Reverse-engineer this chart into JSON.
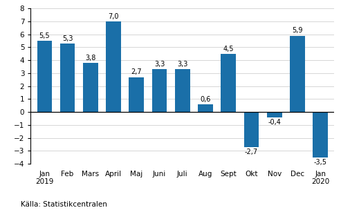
{
  "categories": [
    "Jan\n2019",
    "Feb",
    "Mars",
    "April",
    "Maj",
    "Juni",
    "Juli",
    "Aug",
    "Sept",
    "Okt",
    "Nov",
    "Dec",
    "Jan\n2020"
  ],
  "values": [
    5.5,
    5.3,
    3.8,
    7.0,
    2.7,
    3.3,
    3.3,
    0.6,
    4.5,
    -2.7,
    -0.4,
    5.9,
    -3.5
  ],
  "bar_color": "#1a6fa8",
  "ylim": [
    -4,
    8
  ],
  "yticks": [
    -4,
    -3,
    -2,
    -1,
    0,
    1,
    2,
    3,
    4,
    5,
    6,
    7,
    8
  ],
  "source_text": "Källa: Statistikcentralen",
  "background_color": "#ffffff",
  "label_fontsize": 7.0,
  "axis_fontsize": 7.5,
  "source_fontsize": 7.5,
  "bar_width": 0.65
}
